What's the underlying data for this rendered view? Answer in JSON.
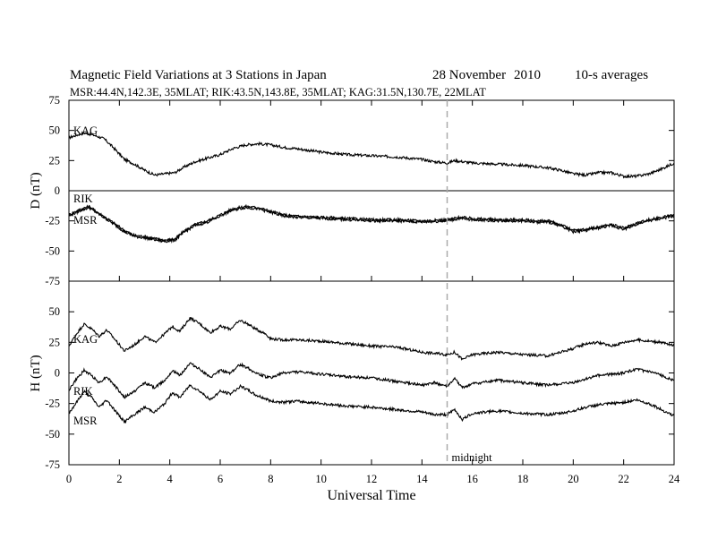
{
  "header": {
    "title_left": "Magnetic Field Variations at 3 Stations in Japan",
    "title_date": "28  November",
    "title_year": "2010",
    "title_avg": "10-s averages",
    "subtitle": "MSR:44.4N,142.3E, 35MLAT;   RIK:43.5N,143.8E, 35MLAT;   KAG:31.5N,130.7E, 22MLAT"
  },
  "colors": {
    "trace": "#000000",
    "midnight_line": "#aaaaaa",
    "background": "#ffffff"
  },
  "chart_data": [
    {
      "type": "line",
      "panel": "D",
      "ylabel": "D (nT)",
      "ylim": [
        -75,
        75
      ],
      "yticks": [
        75,
        50,
        25,
        0,
        -25,
        -50,
        -75
      ],
      "xlim": [
        0,
        24
      ],
      "zero_line": true,
      "series": [
        {
          "name": "KAG",
          "x": [
            0,
            0.3,
            0.6,
            1,
            1.4,
            1.8,
            2.2,
            2.6,
            3,
            3.4,
            3.8,
            4.2,
            4.6,
            5,
            5.5,
            6,
            6.5,
            7,
            7.5,
            8,
            8.5,
            9,
            10,
            11,
            12,
            13,
            14,
            14.5,
            15,
            15.3,
            16,
            17,
            18,
            18.5,
            19,
            19.5,
            20,
            20.5,
            21,
            21.5,
            22,
            22.5,
            23,
            23.5,
            24
          ],
          "y": [
            44,
            46,
            48,
            46,
            43,
            35,
            26,
            22,
            17,
            13,
            14,
            15,
            20,
            24,
            27,
            30,
            35,
            38,
            39,
            38,
            36,
            35,
            32,
            30,
            29,
            28,
            26,
            24,
            23,
            25,
            23,
            22,
            21,
            20,
            19,
            17,
            14,
            13,
            15,
            15,
            12,
            12,
            14,
            18,
            23
          ]
        },
        {
          "name": "RIK",
          "x": [
            0,
            0.3,
            0.5,
            0.8,
            1,
            1.3,
            1.8,
            2.2,
            2.6,
            3,
            3.5,
            3.8,
            4.2,
            4.6,
            5,
            5.5,
            6,
            6.5,
            7,
            7.5,
            8,
            8.5,
            9,
            10,
            11,
            12,
            13,
            14,
            15,
            15.5,
            16,
            17,
            18,
            18.5,
            19,
            19.5,
            20,
            20.5,
            21,
            21.5,
            22,
            22.5,
            23,
            23.5,
            24
          ],
          "y": [
            -20,
            -17,
            -15,
            -13,
            -16,
            -20,
            -27,
            -33,
            -37,
            -38,
            -40,
            -41,
            -40,
            -33,
            -28,
            -25,
            -20,
            -15,
            -13,
            -14,
            -17,
            -20,
            -21,
            -22,
            -23,
            -24,
            -24,
            -25,
            -24,
            -22,
            -23,
            -24,
            -24,
            -25,
            -25,
            -28,
            -33,
            -32,
            -30,
            -28,
            -31,
            -27,
            -24,
            -22,
            -20
          ]
        },
        {
          "name": "MSR",
          "x": [
            0,
            0.3,
            0.5,
            0.8,
            1,
            1.3,
            1.8,
            2.2,
            2.6,
            3,
            3.5,
            3.8,
            4.2,
            4.6,
            5,
            5.5,
            6,
            6.5,
            7,
            7.5,
            8,
            8.5,
            9,
            10,
            11,
            12,
            13,
            14,
            15,
            15.5,
            16,
            17,
            18,
            18.5,
            19,
            19.5,
            20,
            20.5,
            21,
            21.5,
            22,
            22.5,
            23,
            23.5,
            24
          ],
          "y": [
            -21,
            -18,
            -16,
            -14,
            -17,
            -21,
            -28,
            -34,
            -38,
            -39,
            -41,
            -42,
            -41,
            -34,
            -29,
            -26,
            -21,
            -16,
            -14,
            -15,
            -18,
            -21,
            -22,
            -23,
            -24,
            -25,
            -25,
            -26,
            -25,
            -23,
            -24,
            -25,
            -25,
            -26,
            -26,
            -29,
            -34,
            -33,
            -31,
            -29,
            -32,
            -28,
            -25,
            -23,
            -21
          ]
        }
      ]
    },
    {
      "type": "line",
      "panel": "H",
      "ylabel": "H (nT)",
      "ylim": [
        -75,
        75
      ],
      "yticks": [
        50,
        25,
        0,
        -25,
        -50,
        -75
      ],
      "xlim": [
        0,
        24
      ],
      "xticks": [
        0,
        2,
        4,
        6,
        8,
        10,
        12,
        14,
        16,
        18,
        20,
        22,
        24
      ],
      "xlabel": "Universal Time",
      "series": [
        {
          "name": "KAG",
          "x": [
            0,
            0.3,
            0.6,
            0.9,
            1.2,
            1.5,
            1.8,
            2.2,
            2.6,
            3,
            3.4,
            3.8,
            4.1,
            4.4,
            4.8,
            5.2,
            5.6,
            6,
            6.4,
            6.8,
            7.1,
            7.4,
            7.8,
            8,
            8.5,
            9,
            10,
            11,
            12,
            13,
            14,
            14.5,
            15,
            15.3,
            15.6,
            16,
            17,
            18,
            19,
            19.5,
            20,
            20.5,
            21,
            21.5,
            22,
            22.5,
            23,
            23.5,
            24
          ],
          "y": [
            22,
            32,
            40,
            36,
            30,
            35,
            28,
            18,
            23,
            30,
            25,
            32,
            38,
            34,
            45,
            40,
            33,
            38,
            36,
            43,
            40,
            36,
            32,
            28,
            27,
            27,
            26,
            24,
            22,
            21,
            17,
            16,
            15,
            17,
            11,
            15,
            17,
            15,
            14,
            17,
            20,
            24,
            25,
            22,
            25,
            27,
            26,
            25,
            22
          ]
        },
        {
          "name": "RIK",
          "x": [
            0,
            0.3,
            0.6,
            0.9,
            1.2,
            1.5,
            1.8,
            2.2,
            2.6,
            3,
            3.4,
            3.8,
            4.1,
            4.4,
            4.8,
            5.2,
            5.6,
            6,
            6.4,
            6.8,
            7.1,
            7.4,
            7.8,
            8,
            8.5,
            9,
            10,
            11,
            12,
            13,
            14,
            14.5,
            15,
            15.3,
            15.6,
            16,
            17,
            18,
            19,
            19.5,
            20,
            20.5,
            21,
            21.5,
            22,
            22.5,
            23,
            23.5,
            24
          ],
          "y": [
            -14,
            -5,
            2,
            -2,
            -8,
            -3,
            -10,
            -20,
            -15,
            -8,
            -12,
            -6,
            2,
            -2,
            8,
            3,
            -4,
            2,
            0,
            7,
            4,
            0,
            -3,
            -4,
            0,
            1,
            -1,
            -3,
            -4,
            -7,
            -10,
            -8,
            -11,
            -5,
            -12,
            -9,
            -6,
            -8,
            -10,
            -9,
            -8,
            -5,
            -2,
            -1,
            0,
            3,
            1,
            -2,
            -6
          ]
        },
        {
          "name": "MSR",
          "x": [
            0,
            0.3,
            0.6,
            0.9,
            1.2,
            1.5,
            1.8,
            2.2,
            2.6,
            3,
            3.4,
            3.8,
            4.1,
            4.4,
            4.8,
            5.2,
            5.6,
            6,
            6.4,
            6.8,
            7.1,
            7.4,
            7.8,
            8,
            8.5,
            9,
            10,
            11,
            12,
            13,
            14,
            14.5,
            15,
            15.3,
            15.6,
            16,
            17,
            18,
            19,
            19.5,
            20,
            20.5,
            21,
            21.5,
            22,
            22.5,
            23,
            23.5,
            24
          ],
          "y": [
            -33,
            -24,
            -15,
            -20,
            -28,
            -22,
            -30,
            -40,
            -34,
            -28,
            -32,
            -25,
            -16,
            -20,
            -10,
            -15,
            -22,
            -15,
            -17,
            -11,
            -14,
            -18,
            -21,
            -23,
            -24,
            -23,
            -25,
            -27,
            -28,
            -30,
            -32,
            -34,
            -34,
            -30,
            -38,
            -33,
            -31,
            -33,
            -34,
            -33,
            -31,
            -28,
            -26,
            -25,
            -24,
            -22,
            -25,
            -30,
            -35
          ]
        }
      ]
    }
  ],
  "annotations": {
    "midnight_x": 15,
    "midnight_label": "midnight",
    "station_labels_D": [
      "KAG",
      "RIK",
      "MSR"
    ],
    "station_labels_H": [
      "KAG",
      "RIK",
      "MSR"
    ]
  }
}
